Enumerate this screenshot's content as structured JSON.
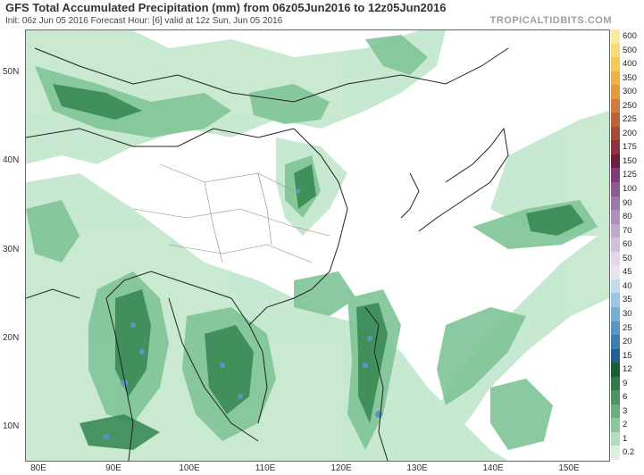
{
  "header": {
    "title": "GFS Total Accumulated Precipitation (mm) from 06z05Jun2016 to 12z05Jun2016",
    "subtitle": "Init: 06z Jun 05 2016   Forecast Hour: [6]   valid at 12z Sun, Jun 05 2016",
    "site": "TROPICALTIDBITS.COM"
  },
  "axes": {
    "lat_labels": [
      "50N",
      "40N",
      "30N",
      "20N",
      "10N"
    ],
    "lon_labels": [
      "80E",
      "90E",
      "100E",
      "110E",
      "120E",
      "130E",
      "140E",
      "150E"
    ]
  },
  "colorbar": {
    "labels": [
      "600",
      "500",
      "400",
      "350",
      "300",
      "250",
      "225",
      "200",
      "175",
      "150",
      "125",
      "100",
      "90",
      "80",
      "70",
      "60",
      "50",
      "45",
      "40",
      "35",
      "30",
      "25",
      "20",
      "15",
      "12",
      "9",
      "6",
      "3",
      "2",
      "1",
      "0.2"
    ],
    "colors": [
      "#fde9a3",
      "#f9dc7a",
      "#f4c95a",
      "#eeb04a",
      "#e39a43",
      "#d07c3e",
      "#bd6239",
      "#a84a3a",
      "#8e3241",
      "#6e1f3e",
      "#7d3c78",
      "#8a5a93",
      "#9c78a8",
      "#ad91ba",
      "#c0a9cc",
      "#d1c0dc",
      "#e4d6ea",
      "#eae4f1",
      "#c3dbef",
      "#9cc5e3",
      "#79aed5",
      "#5b95c3",
      "#3f7bb0",
      "#235f92",
      "#1b5e35",
      "#2e7a4b",
      "#4c9464",
      "#6aae7f",
      "#8cc59b",
      "#b3dbbe",
      "#dcefe2"
    ]
  },
  "map": {
    "region": "East Asia / Western Pacific",
    "precip_colors": {
      "light": "#c6e8cf",
      "mid": "#7fc497",
      "heavy": "#3a8a55",
      "vheavy": "#1f5e3b",
      "blue": "#5b95c3"
    }
  }
}
